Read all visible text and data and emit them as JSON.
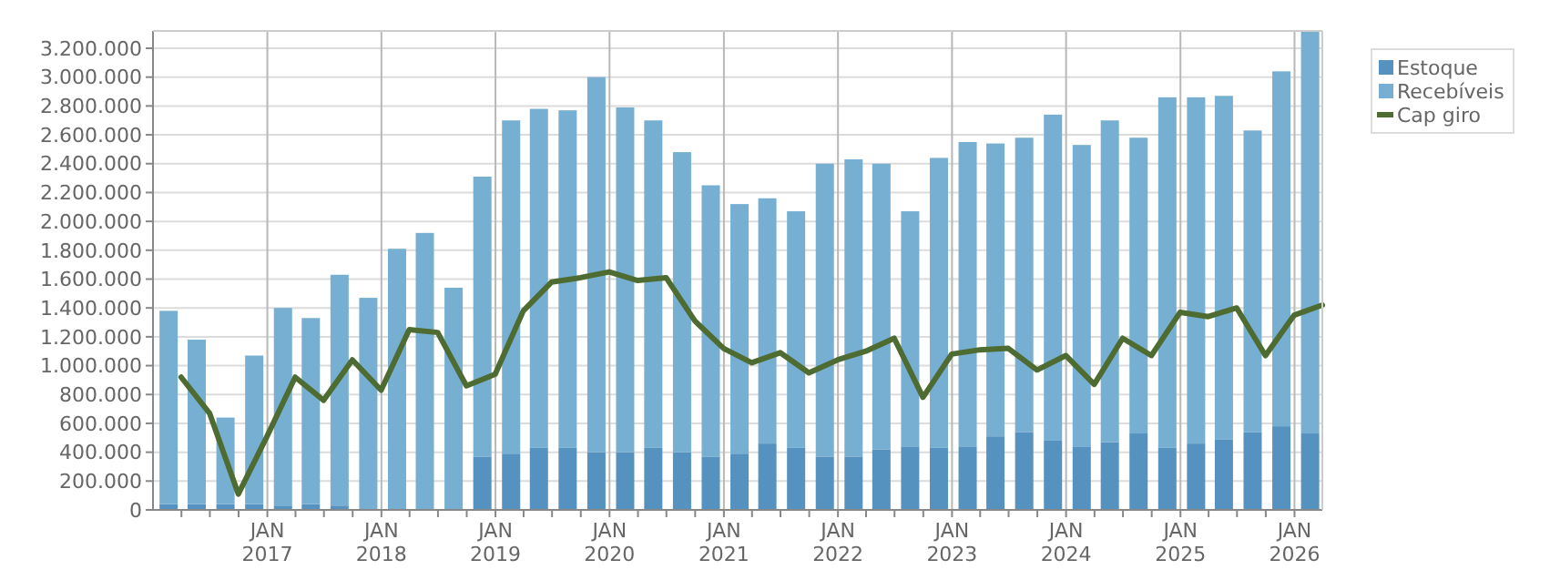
{
  "chart_data": {
    "type": "bar",
    "stacked": true,
    "grid": true,
    "legend": "top right",
    "xlim": [
      "2016-01-01",
      "2026-03-31"
    ],
    "ylim": [
      0,
      3320000
    ],
    "xticks": [
      {
        "value": "2016-04-01",
        "label": null
      },
      {
        "value": "2016-07-01",
        "label": null
      },
      {
        "value": "2016-10-01",
        "label": null
      },
      {
        "value": "2017-01-01",
        "label": "JAN 2017"
      },
      {
        "value": "2017-04-01",
        "label": null
      },
      {
        "value": "2017-07-01",
        "label": null
      },
      {
        "value": "2017-10-01",
        "label": null
      },
      {
        "value": "2018-01-01",
        "label": "JAN 2018"
      },
      {
        "value": "2018-04-01",
        "label": null
      },
      {
        "value": "2018-07-01",
        "label": null
      },
      {
        "value": "2018-10-01",
        "label": null
      },
      {
        "value": "2019-01-01",
        "label": "JAN 2019"
      },
      {
        "value": "2019-04-01",
        "label": null
      },
      {
        "value": "2019-07-01",
        "label": null
      },
      {
        "value": "2019-10-01",
        "label": null
      },
      {
        "value": "2020-01-01",
        "label": "JAN 2020"
      },
      {
        "value": "2020-04-01",
        "label": null
      },
      {
        "value": "2020-07-01",
        "label": null
      },
      {
        "value": "2020-10-01",
        "label": null
      },
      {
        "value": "2021-01-01",
        "label": "JAN 2021"
      },
      {
        "value": "2021-04-01",
        "label": null
      },
      {
        "value": "2021-07-01",
        "label": null
      },
      {
        "value": "2021-10-01",
        "label": null
      },
      {
        "value": "2022-01-01",
        "label": "JAN 2022"
      },
      {
        "value": "2022-04-01",
        "label": null
      },
      {
        "value": "2022-07-01",
        "label": null
      },
      {
        "value": "2022-10-01",
        "label": null
      },
      {
        "value": "2023-01-01",
        "label": "JAN 2023"
      },
      {
        "value": "2023-04-01",
        "label": null
      },
      {
        "value": "2023-07-01",
        "label": null
      },
      {
        "value": "2023-10-01",
        "label": null
      },
      {
        "value": "2024-01-01",
        "label": "JAN 2024"
      },
      {
        "value": "2024-04-01",
        "label": null
      },
      {
        "value": "2024-07-01",
        "label": null
      },
      {
        "value": "2024-10-01",
        "label": null
      },
      {
        "value": "2025-01-01",
        "label": "JAN 2025"
      },
      {
        "value": "2025-04-01",
        "label": null
      },
      {
        "value": "2025-07-01",
        "label": null
      },
      {
        "value": "2025-10-01",
        "label": null
      },
      {
        "value": "2026-01-01",
        "label": "JAN 2026"
      }
    ],
    "yticks": [
      {
        "value": 0,
        "label": "0"
      },
      {
        "value": 200000,
        "label": "200.000"
      },
      {
        "value": 400000,
        "label": "400.000"
      },
      {
        "value": 600000,
        "label": "600.000"
      },
      {
        "value": 800000,
        "label": "800.000"
      },
      {
        "value": 1000000,
        "label": "1.000.000"
      },
      {
        "value": 1200000,
        "label": "1.200.000"
      },
      {
        "value": 1400000,
        "label": "1.400.000"
      },
      {
        "value": 1600000,
        "label": "1.600.000"
      },
      {
        "value": 1800000,
        "label": "1.800.000"
      },
      {
        "value": 2000000,
        "label": "2.000.000"
      },
      {
        "value": 2200000,
        "label": "2.200.000"
      },
      {
        "value": 2400000,
        "label": "2.400.000"
      },
      {
        "value": 2600000,
        "label": "2.600.000"
      },
      {
        "value": 2800000,
        "label": "2.800.000"
      },
      {
        "value": 3000000,
        "label": "3.000.000"
      },
      {
        "value": 3200000,
        "label": "3.200.000"
      }
    ],
    "x": [
      "2016-02-20",
      "2016-05-20",
      "2016-08-20",
      "2016-11-20",
      "2017-02-20",
      "2017-05-20",
      "2017-08-20",
      "2017-11-20",
      "2018-02-20",
      "2018-05-20",
      "2018-08-20",
      "2018-11-20",
      "2019-02-20",
      "2019-05-20",
      "2019-08-20",
      "2019-11-20",
      "2020-02-20",
      "2020-05-20",
      "2020-08-20",
      "2020-11-20",
      "2021-02-20",
      "2021-05-20",
      "2021-08-20",
      "2021-11-20",
      "2022-02-20",
      "2022-05-20",
      "2022-08-20",
      "2022-11-20",
      "2023-02-20",
      "2023-05-20",
      "2023-08-20",
      "2023-11-20",
      "2024-02-20",
      "2024-05-20",
      "2024-08-20",
      "2024-11-20",
      "2025-02-20",
      "2025-05-20",
      "2025-08-20",
      "2025-11-20",
      "2026-02-20"
    ],
    "series": [
      {
        "name": "Estoque",
        "color": "#5592bf",
        "values": [
          40000,
          40000,
          40000,
          40000,
          30000,
          40000,
          30000,
          0,
          0,
          0,
          0,
          370000,
          390000,
          430000,
          430000,
          400000,
          400000,
          430000,
          400000,
          370000,
          390000,
          460000,
          430000,
          370000,
          370000,
          420000,
          440000,
          430000,
          440000,
          510000,
          540000,
          480000,
          440000,
          470000,
          530000,
          430000,
          460000,
          490000,
          540000,
          580000,
          530000
        ]
      },
      {
        "name": "Recebíveis",
        "color": "#76afd2",
        "values": [
          1340000,
          1140000,
          600000,
          1030000,
          1370000,
          1290000,
          1600000,
          1470000,
          1810000,
          1920000,
          1540000,
          1940000,
          2310000,
          2350000,
          2340000,
          2600000,
          2390000,
          2270000,
          2080000,
          1880000,
          1730000,
          1700000,
          1640000,
          2030000,
          2060000,
          1980000,
          1630000,
          2010000,
          2110000,
          2030000,
          2040000,
          2260000,
          2090000,
          2230000,
          2050000,
          2430000,
          2400000,
          2380000,
          2090000,
          2460000,
          2790000
        ]
      },
      {
        "name": "Cap giro",
        "type": "line",
        "color": "#4e6b32",
        "x": [
          "2016-03-31",
          "2016-06-30",
          "2016-09-30",
          "2016-12-31",
          "2017-03-31",
          "2017-06-30",
          "2017-09-30",
          "2017-12-31",
          "2018-03-31",
          "2018-06-30",
          "2018-09-30",
          "2018-12-31",
          "2019-03-31",
          "2019-06-30",
          "2019-09-30",
          "2019-12-31",
          "2020-03-31",
          "2020-06-30",
          "2020-09-30",
          "2020-12-31",
          "2021-03-31",
          "2021-06-30",
          "2021-09-30",
          "2021-12-31",
          "2022-03-31",
          "2022-06-30",
          "2022-09-30",
          "2022-12-31",
          "2023-03-31",
          "2023-06-30",
          "2023-09-30",
          "2023-12-31",
          "2024-03-31",
          "2024-06-30",
          "2024-09-30",
          "2024-12-31",
          "2025-03-31",
          "2025-06-30",
          "2025-09-30",
          "2025-12-31",
          "2026-03-31"
        ],
        "values": [
          920000,
          670000,
          110000,
          510000,
          920000,
          760000,
          1040000,
          830000,
          1250000,
          1230000,
          860000,
          940000,
          1380000,
          1580000,
          1610000,
          1650000,
          1590000,
          1610000,
          1310000,
          1120000,
          1020000,
          1090000,
          950000,
          1040000,
          1100000,
          1190000,
          780000,
          1080000,
          1110000,
          1120000,
          970000,
          1070000,
          870000,
          1190000,
          1070000,
          1370000,
          1340000,
          1400000,
          1070000,
          1350000,
          1420000
        ]
      }
    ]
  }
}
